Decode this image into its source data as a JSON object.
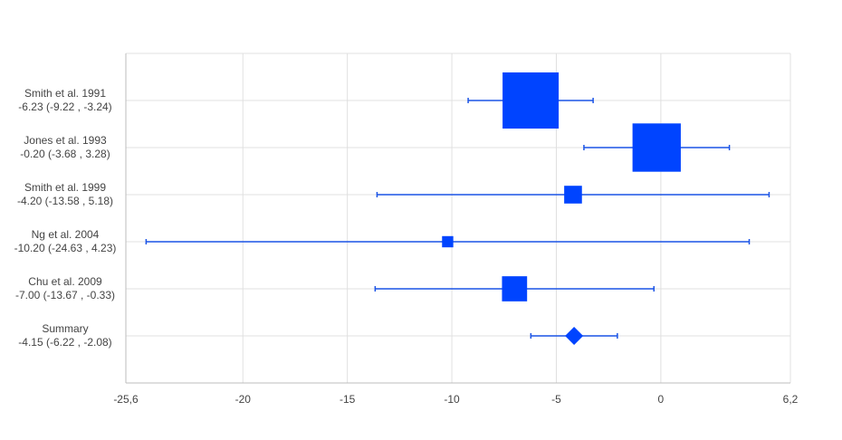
{
  "chart_data": {
    "type": "forest",
    "xlim": [
      -25.6,
      6.2
    ],
    "ticks": [
      {
        "value": -25.6,
        "label": "-25,6"
      },
      {
        "value": -20,
        "label": "-20"
      },
      {
        "value": -15,
        "label": "-15"
      },
      {
        "value": -10,
        "label": "-10"
      },
      {
        "value": -5,
        "label": "-5"
      },
      {
        "value": 0,
        "label": "0"
      },
      {
        "value": 6.2,
        "label": "6,2"
      }
    ],
    "grid": true,
    "rows": [
      {
        "study": "Smith et al. 1991",
        "ci_text": "-6.23 (-9.22 , -3.24)",
        "estimate": -6.23,
        "lower": -9.22,
        "upper": -3.24,
        "weight": 1.0,
        "summary": false
      },
      {
        "study": "Jones et al. 1993",
        "ci_text": "-0.20 (-3.68 , 3.28)",
        "estimate": -0.2,
        "lower": -3.68,
        "upper": 3.28,
        "weight": 0.74,
        "summary": false
      },
      {
        "study": "Smith et al. 1999",
        "ci_text": "-4.20 (-13.58 , 5.18)",
        "estimate": -4.2,
        "lower": -13.58,
        "upper": 5.18,
        "weight": 0.1,
        "summary": false
      },
      {
        "study": "Ng et al. 2004",
        "ci_text": "-10.20 (-24.63 , 4.23)",
        "estimate": -10.2,
        "lower": -24.63,
        "upper": 4.23,
        "weight": 0.04,
        "summary": false
      },
      {
        "study": "Chu et al. 2009",
        "ci_text": "-7.00 (-13.67 , -0.33)",
        "estimate": -7.0,
        "lower": -13.67,
        "upper": -0.33,
        "weight": 0.2,
        "summary": false
      },
      {
        "study": "Summary",
        "ci_text": "-4.15 (-6.22 , -2.08)",
        "estimate": -4.15,
        "lower": -6.22,
        "upper": -2.08,
        "weight": 0.35,
        "summary": true
      }
    ],
    "colors": {
      "marker": "#0044ff",
      "line": "#1a53e6",
      "grid": "#e0e0e0",
      "axis": "#bdbdbd",
      "text": "#444444"
    }
  }
}
